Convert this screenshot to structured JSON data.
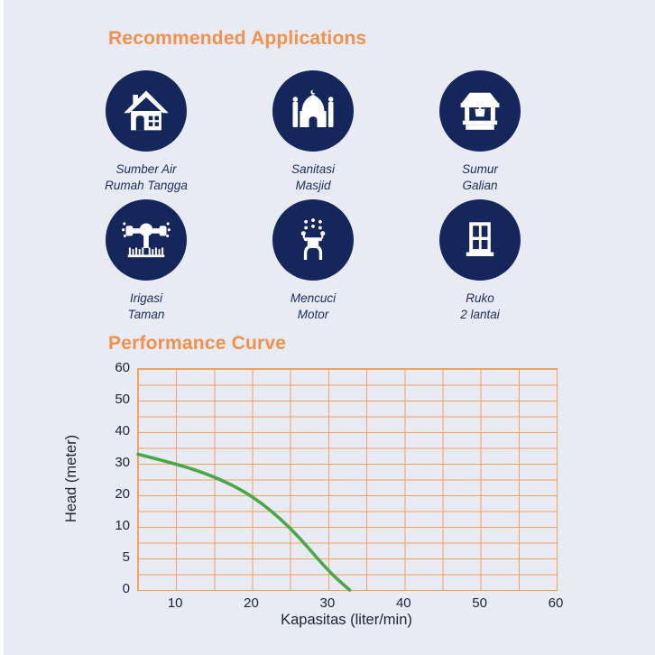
{
  "theme": {
    "background": "#E8EAF4",
    "accent": "#F0914C",
    "navy": "#15265B",
    "label_navy": "#1D2D5C",
    "grid_orange": "#F0A35C",
    "curve_green": "#4BA74B",
    "chart_text": "#1B2338",
    "icon_glyph": "#FFFFFF"
  },
  "applications": {
    "title": "Recommended Applications",
    "items": [
      {
        "icon": "house-icon",
        "label": "Sumber Air\nRumah Tangga"
      },
      {
        "icon": "mosque-icon",
        "label": "Sanitasi\nMasjid"
      },
      {
        "icon": "well-icon",
        "label": "Sumur\nGalian"
      },
      {
        "icon": "sprinkler-icon",
        "label": "Irigasi\nTaman"
      },
      {
        "icon": "scooter-icon",
        "label": "Mencuci\nMotor"
      },
      {
        "icon": "window-icon",
        "label": "Ruko\n2 lantai"
      }
    ]
  },
  "performance": {
    "title": "Performance Curve"
  },
  "chart_data": {
    "type": "line",
    "title": "Performance Curve",
    "xlabel": "Kapasitas (liter/min)",
    "ylabel": "Head (meter)",
    "x_range": [
      5,
      60
    ],
    "x_gridline_step": 5,
    "x_tick_labels": [
      "10",
      "20",
      "30",
      "40",
      "50",
      "60"
    ],
    "y_ticks": [
      0,
      5,
      10,
      20,
      30,
      40,
      50,
      60
    ],
    "y_tick_labels": [
      "60",
      "50",
      "40",
      "30",
      "20",
      "10",
      "5",
      "0"
    ],
    "y_scale_note": "tick labels evenly spaced on axis (compressed scale below 10)",
    "grid": {
      "cols": 11,
      "rows": 14,
      "on": true
    },
    "legend": "none",
    "line_color": "#4BA74B",
    "series": [
      {
        "name": "head-vs-capacity",
        "points": [
          [
            5,
            33
          ],
          [
            10,
            30
          ],
          [
            15,
            26
          ],
          [
            20,
            20
          ],
          [
            25,
            10
          ],
          [
            30,
            3
          ],
          [
            32.8,
            0
          ]
        ]
      }
    ]
  }
}
